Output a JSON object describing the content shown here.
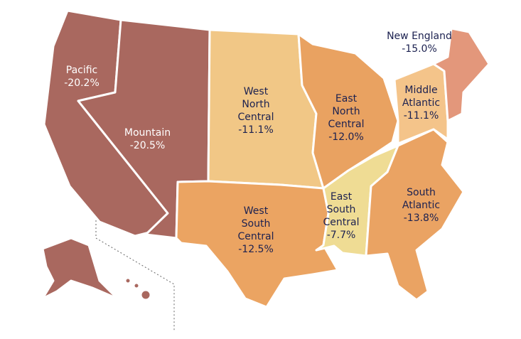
{
  "regions": [
    {
      "name": "Pacific",
      "value": -20.2,
      "label": "-20.2%",
      "color": "#a9685f"
    },
    {
      "name": "Mountain",
      "value": -20.5,
      "label": "-20.5%",
      "color": "#a9685f"
    },
    {
      "name": "West North Central",
      "value": -11.1,
      "label": "-11.1%",
      "color": "#f1c786"
    },
    {
      "name": "East North Central",
      "value": -12.0,
      "label": "-12.0%",
      "color": "#e9a261"
    },
    {
      "name": "Middle Atlantic",
      "value": -11.1,
      "label": "-11.1%",
      "color": "#f4c48a"
    },
    {
      "name": "New England",
      "value": -15.0,
      "label": "-15.0%",
      "color": "#e3977b"
    },
    {
      "name": "West South Central",
      "value": -12.5,
      "label": "-12.5%",
      "color": "#eba462"
    },
    {
      "name": "East South Central",
      "value": -7.7,
      "label": "-7.7%",
      "color": "#efdc94"
    },
    {
      "name": "South Atlantic",
      "value": -13.8,
      "label": "-13.8%",
      "color": "#eaa363"
    }
  ]
}
